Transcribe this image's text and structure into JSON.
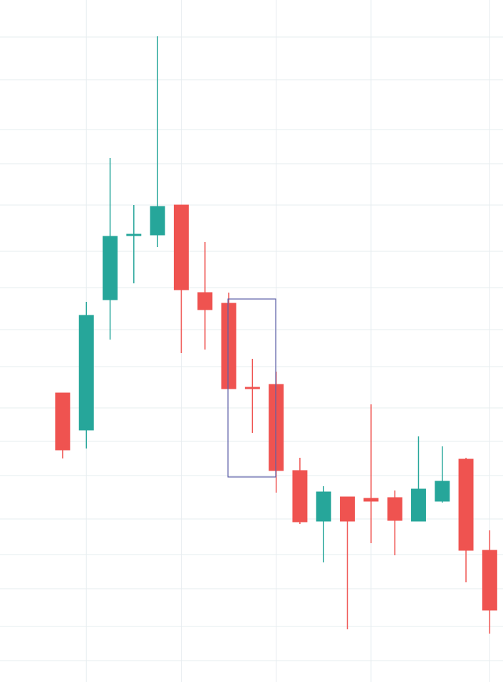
{
  "chart_data": {
    "type": "candlestick",
    "x": [
      0,
      1,
      2,
      3,
      4,
      5,
      6,
      7,
      8,
      9,
      10,
      11,
      12,
      13,
      14,
      15,
      16,
      17,
      18
    ],
    "open": [
      406,
      354,
      537,
      627,
      628,
      670,
      547,
      532,
      414,
      418,
      297,
      226,
      260,
      258,
      259,
      226,
      254,
      313,
      185
    ],
    "high": [
      406,
      534,
      736,
      670,
      907,
      670,
      618,
      547,
      454,
      436,
      315,
      275,
      260,
      390,
      269,
      345,
      331,
      315,
      213
    ],
    "low": [
      314,
      328,
      481,
      560,
      611,
      462,
      467,
      412,
      350,
      266,
      222,
      168,
      74,
      195,
      178,
      226,
      252,
      140,
      68
    ],
    "close": [
      326,
      515,
      626,
      629,
      668,
      551,
      523,
      412,
      412,
      297,
      225,
      267,
      226,
      254,
      227,
      271,
      282,
      185,
      101
    ],
    "up_color": "#26a69a",
    "down_color": "#ef5350",
    "xlim": [
      -2.64,
      18.56
    ],
    "xticks": [
      1,
      5,
      9,
      13,
      18
    ],
    "ylim": [
      0,
      958
    ],
    "yticks": [
      30,
      78,
      131,
      179,
      229,
      290,
      338,
      385,
      443,
      495,
      554,
      605,
      670,
      728,
      776,
      846,
      906
    ],
    "grid": true
  }
}
